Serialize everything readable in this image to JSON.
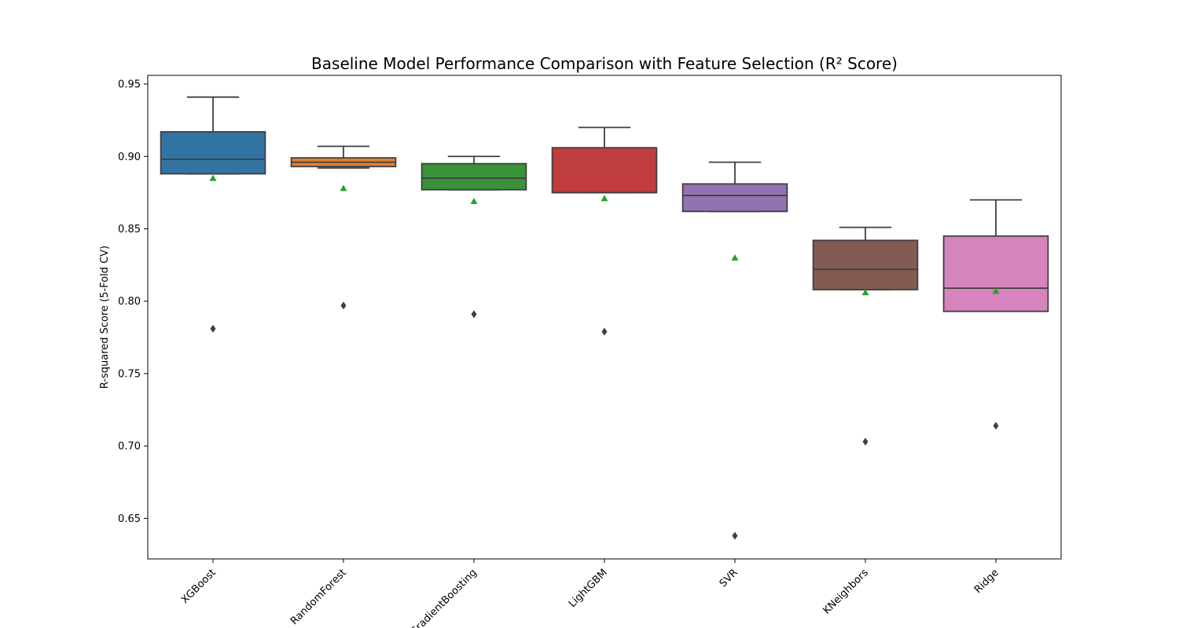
{
  "chart_data": {
    "type": "box",
    "title": "Baseline Model Performance Comparison with Feature Selection (R² Score)",
    "xlabel": "",
    "ylabel": "R-squared Score (5-Fold CV)",
    "ylim": [
      0.622,
      0.956
    ],
    "yticks": [
      0.65,
      0.7,
      0.75,
      0.8,
      0.85,
      0.9,
      0.95
    ],
    "ytick_labels": [
      "0.65",
      "0.70",
      "0.75",
      "0.80",
      "0.85",
      "0.90",
      "0.95"
    ],
    "categories": [
      "XGBoost",
      "RandomForest",
      "GradientBoosting",
      "LightGBM",
      "SVR",
      "KNeighbors",
      "Ridge"
    ],
    "grid": false,
    "legend": "none",
    "mean_marker": "triangle",
    "mean_color": "#2ca02c",
    "boxes": [
      {
        "name": "XGBoost",
        "color": "#3274a1",
        "whisker_low": 0.888,
        "q1": 0.888,
        "median": 0.898,
        "q3": 0.917,
        "whisker_high": 0.941,
        "mean": 0.885,
        "outliers": [
          0.781
        ]
      },
      {
        "name": "RandomForest",
        "color": "#e1812c",
        "whisker_low": 0.892,
        "q1": 0.893,
        "median": 0.896,
        "q3": 0.899,
        "whisker_high": 0.907,
        "mean": 0.878,
        "outliers": [
          0.797
        ]
      },
      {
        "name": "GradientBoosting",
        "color": "#3a923a",
        "whisker_low": 0.877,
        "q1": 0.877,
        "median": 0.885,
        "q3": 0.895,
        "whisker_high": 0.9,
        "mean": 0.869,
        "outliers": [
          0.791
        ]
      },
      {
        "name": "LightGBM",
        "color": "#c03d3e",
        "whisker_low": 0.875,
        "q1": 0.875,
        "median": 0.875,
        "q3": 0.906,
        "whisker_high": 0.92,
        "mean": 0.871,
        "outliers": [
          0.779
        ]
      },
      {
        "name": "SVR",
        "color": "#9372b2",
        "whisker_low": 0.862,
        "q1": 0.862,
        "median": 0.873,
        "q3": 0.881,
        "whisker_high": 0.896,
        "mean": 0.83,
        "outliers": [
          0.638
        ]
      },
      {
        "name": "KNeighbors",
        "color": "#845b53",
        "whisker_low": 0.808,
        "q1": 0.808,
        "median": 0.822,
        "q3": 0.842,
        "whisker_high": 0.851,
        "mean": 0.806,
        "outliers": [
          0.703
        ]
      },
      {
        "name": "Ridge",
        "color": "#d684bd",
        "whisker_low": 0.793,
        "q1": 0.793,
        "median": 0.809,
        "q3": 0.845,
        "whisker_high": 0.87,
        "mean": 0.807,
        "outliers": [
          0.714
        ]
      }
    ]
  }
}
